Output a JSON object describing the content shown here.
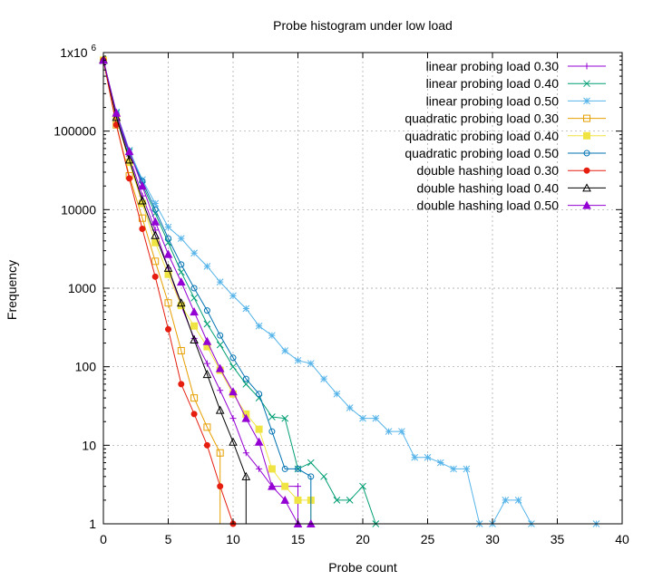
{
  "chart_data": {
    "type": "line",
    "title": "Probe histogram under low load",
    "xlabel": "Probe count",
    "ylabel": "Frequency",
    "xlim": [
      0,
      40
    ],
    "ylim": [
      1,
      1000000
    ],
    "y_scale": "log",
    "grid": true,
    "legend_position": "top-right",
    "x_ticks": [
      "0",
      "5",
      "10",
      "15",
      "20",
      "25",
      "30",
      "35",
      "40"
    ],
    "y_ticks": [
      {
        "value": 1,
        "label": "1"
      },
      {
        "value": 10,
        "label": "10"
      },
      {
        "value": 100,
        "label": "100"
      },
      {
        "value": 1000,
        "label": "1000"
      },
      {
        "value": 10000,
        "label": "10000"
      },
      {
        "value": 100000,
        "label": "100000"
      }
    ],
    "y_top_label": {
      "base": "1x10",
      "exp": "6"
    },
    "series": [
      {
        "name": "linear probing load 0.30",
        "color": "#9400d3",
        "marker": "plus",
        "x": [
          0,
          1,
          2,
          3,
          4,
          5,
          6,
          7,
          8,
          9,
          10,
          11,
          12,
          13,
          14,
          15
        ],
        "y": [
          820000,
          160000,
          48000,
          15000,
          5500,
          1800,
          600,
          230,
          110,
          50,
          22,
          8,
          5,
          3,
          3,
          3
        ]
      },
      {
        "name": "linear probing load 0.40",
        "color": "#009e73",
        "marker": "cross",
        "x": [
          0,
          1,
          2,
          3,
          4,
          5,
          6,
          7,
          8,
          9,
          10,
          11,
          12,
          13,
          14,
          15,
          16,
          17,
          18,
          19,
          20,
          21
        ],
        "y": [
          800000,
          170000,
          55000,
          21000,
          9000,
          3800,
          1600,
          750,
          350,
          190,
          100,
          60,
          40,
          23,
          22,
          5,
          6,
          4,
          2,
          2,
          3,
          1
        ]
      },
      {
        "name": "linear probing load 0.50",
        "color": "#56b4e9",
        "marker": "star",
        "x": [
          0,
          1,
          2,
          3,
          4,
          5,
          6,
          7,
          8,
          9,
          10,
          11,
          12,
          13,
          14,
          15,
          16,
          17,
          18,
          19,
          20,
          21,
          22,
          23,
          24,
          25,
          26,
          27,
          28,
          29,
          30,
          31,
          32,
          33,
          38
        ],
        "y": [
          780000,
          175000,
          57000,
          24000,
          12000,
          6000,
          4300,
          2800,
          1900,
          1200,
          800,
          550,
          330,
          250,
          160,
          120,
          110,
          70,
          45,
          30,
          22,
          22,
          15,
          15,
          7,
          7,
          6,
          5,
          5,
          1,
          1,
          2,
          2,
          1,
          1
        ]
      },
      {
        "name": "quadratic probing load 0.30",
        "color": "#e69f00",
        "marker": "square-open",
        "x": [
          0,
          1,
          2,
          3,
          4,
          5,
          6,
          7,
          8,
          9
        ],
        "y": [
          800000,
          120000,
          27000,
          7800,
          2200,
          650,
          160,
          40,
          17,
          8
        ]
      },
      {
        "name": "quadratic probing load 0.40",
        "color": "#f0e442",
        "marker": "square-filled",
        "x": [
          0,
          1,
          2,
          3,
          4,
          5,
          6,
          7,
          8,
          9,
          10,
          11,
          12,
          13,
          14,
          15,
          16
        ],
        "y": [
          800000,
          150000,
          40000,
          12000,
          3800,
          1500,
          600,
          330,
          180,
          90,
          45,
          25,
          16,
          5,
          3,
          2,
          2
        ]
      },
      {
        "name": "quadratic probing load 0.50",
        "color": "#0072b2",
        "marker": "circle-open",
        "x": [
          0,
          1,
          2,
          3,
          4,
          5,
          6,
          7,
          8,
          9,
          10,
          11,
          12,
          13,
          14,
          15,
          16
        ],
        "y": [
          790000,
          165000,
          52000,
          23000,
          10000,
          4300,
          2000,
          1000,
          520,
          250,
          130,
          70,
          45,
          15,
          5,
          5,
          4
        ]
      },
      {
        "name": "double hashing load 0.30",
        "color": "#e51e10",
        "marker": "circle-filled",
        "x": [
          0,
          1,
          2,
          3,
          4,
          5,
          6,
          7,
          8,
          9,
          10
        ],
        "y": [
          800000,
          120000,
          25000,
          5700,
          1400,
          300,
          60,
          25,
          10,
          3,
          1
        ]
      },
      {
        "name": "double hashing load 0.40",
        "color": "#000000",
        "marker": "triangle-open",
        "x": [
          0,
          1,
          2,
          3,
          4,
          5,
          6,
          7,
          8,
          9,
          10,
          11
        ],
        "y": [
          810000,
          150000,
          43000,
          13000,
          4700,
          1800,
          650,
          220,
          80,
          28,
          11,
          4
        ]
      },
      {
        "name": "double hashing load 0.50",
        "color": "#9400d3",
        "marker": "triangle-filled",
        "x": [
          0,
          1,
          2,
          3,
          4,
          5,
          6,
          7,
          8,
          9,
          10,
          11,
          12,
          13,
          14,
          15,
          16
        ],
        "y": [
          800000,
          170000,
          55000,
          20000,
          7000,
          2700,
          1200,
          500,
          210,
          95,
          48,
          22,
          11,
          3,
          2,
          1,
          1
        ]
      }
    ]
  }
}
